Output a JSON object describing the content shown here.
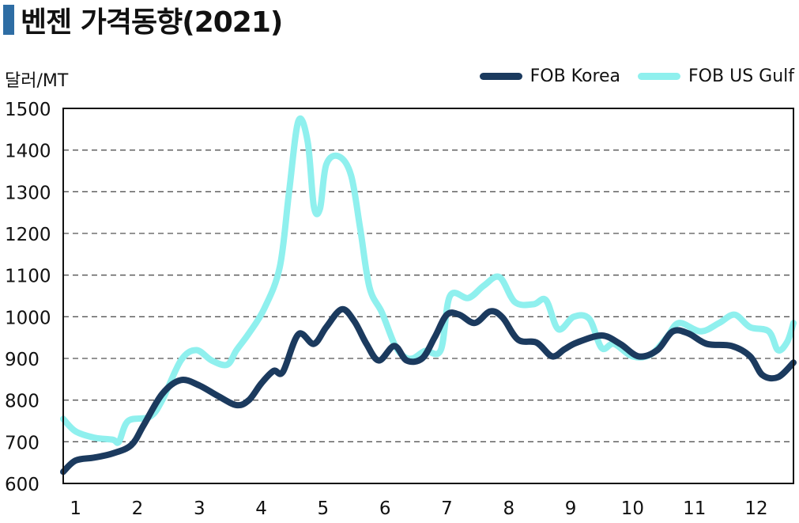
{
  "title": "벤젠 가격동향(2021)",
  "unit_label": "달러/MT",
  "colors": {
    "title_mark": "#2e6da4",
    "fob_korea": "#1b3a5e",
    "fob_us_gulf": "#8ff0ee",
    "grid": "#555555"
  },
  "chart_data": {
    "type": "line",
    "title": "벤젠 가격동향(2021)",
    "ylabel": "달러/MT",
    "xlabel": "",
    "ylim": [
      600,
      1500
    ],
    "yticks": [
      600,
      700,
      800,
      900,
      1000,
      1100,
      1200,
      1300,
      1400,
      1500
    ],
    "xlim": [
      0.8,
      12.6
    ],
    "xticks": [
      1,
      2,
      3,
      4,
      5,
      6,
      7,
      8,
      9,
      10,
      11,
      12
    ],
    "grid": "horizontal dashed",
    "legend_position": "top-right",
    "series": [
      {
        "name": "FOB Korea",
        "color": "#1b3a5e",
        "points": [
          [
            0.8,
            628
          ],
          [
            1.0,
            655
          ],
          [
            1.3,
            662
          ],
          [
            1.6,
            672
          ],
          [
            1.9,
            692
          ],
          [
            2.1,
            740
          ],
          [
            2.4,
            815
          ],
          [
            2.7,
            848
          ],
          [
            3.0,
            835
          ],
          [
            3.3,
            810
          ],
          [
            3.6,
            788
          ],
          [
            3.8,
            800
          ],
          [
            4.0,
            840
          ],
          [
            4.2,
            870
          ],
          [
            4.35,
            868
          ],
          [
            4.6,
            958
          ],
          [
            4.85,
            935
          ],
          [
            5.05,
            975
          ],
          [
            5.3,
            1018
          ],
          [
            5.5,
            990
          ],
          [
            5.7,
            935
          ],
          [
            5.9,
            895
          ],
          [
            6.15,
            930
          ],
          [
            6.35,
            895
          ],
          [
            6.6,
            900
          ],
          [
            6.8,
            950
          ],
          [
            7.0,
            1005
          ],
          [
            7.2,
            1005
          ],
          [
            7.45,
            985
          ],
          [
            7.7,
            1013
          ],
          [
            7.9,
            998
          ],
          [
            8.15,
            945
          ],
          [
            8.45,
            938
          ],
          [
            8.7,
            905
          ],
          [
            8.9,
            922
          ],
          [
            9.1,
            938
          ],
          [
            9.5,
            955
          ],
          [
            9.8,
            935
          ],
          [
            10.1,
            905
          ],
          [
            10.4,
            920
          ],
          [
            10.65,
            965
          ],
          [
            10.9,
            960
          ],
          [
            11.2,
            935
          ],
          [
            11.6,
            930
          ],
          [
            11.9,
            905
          ],
          [
            12.1,
            860
          ],
          [
            12.35,
            855
          ],
          [
            12.6,
            890
          ]
        ]
      },
      {
        "name": "FOB US Gulf",
        "color": "#8ff0ee",
        "points": [
          [
            0.8,
            755
          ],
          [
            1.0,
            725
          ],
          [
            1.3,
            710
          ],
          [
            1.6,
            705
          ],
          [
            1.7,
            700
          ],
          [
            1.85,
            750
          ],
          [
            2.2,
            760
          ],
          [
            2.4,
            800
          ],
          [
            2.7,
            895
          ],
          [
            2.95,
            920
          ],
          [
            3.2,
            895
          ],
          [
            3.45,
            885
          ],
          [
            3.6,
            920
          ],
          [
            3.8,
            960
          ],
          [
            4.05,
            1020
          ],
          [
            4.3,
            1120
          ],
          [
            4.45,
            1300
          ],
          [
            4.6,
            1470
          ],
          [
            4.75,
            1420
          ],
          [
            4.85,
            1265
          ],
          [
            4.95,
            1260
          ],
          [
            5.05,
            1365
          ],
          [
            5.25,
            1385
          ],
          [
            5.45,
            1340
          ],
          [
            5.6,
            1210
          ],
          [
            5.75,
            1070
          ],
          [
            5.95,
            1010
          ],
          [
            6.15,
            935
          ],
          [
            6.3,
            905
          ],
          [
            6.45,
            900
          ],
          [
            6.65,
            918
          ],
          [
            6.9,
            920
          ],
          [
            7.05,
            1050
          ],
          [
            7.35,
            1045
          ],
          [
            7.6,
            1075
          ],
          [
            7.85,
            1095
          ],
          [
            8.1,
            1035
          ],
          [
            8.4,
            1030
          ],
          [
            8.6,
            1040
          ],
          [
            8.8,
            970
          ],
          [
            9.05,
            1000
          ],
          [
            9.3,
            995
          ],
          [
            9.5,
            925
          ],
          [
            9.7,
            935
          ],
          [
            10.0,
            905
          ],
          [
            10.3,
            910
          ],
          [
            10.55,
            950
          ],
          [
            10.75,
            985
          ],
          [
            11.1,
            965
          ],
          [
            11.4,
            985
          ],
          [
            11.65,
            1005
          ],
          [
            11.9,
            975
          ],
          [
            12.2,
            965
          ],
          [
            12.35,
            920
          ],
          [
            12.5,
            940
          ],
          [
            12.6,
            985
          ]
        ]
      }
    ]
  }
}
